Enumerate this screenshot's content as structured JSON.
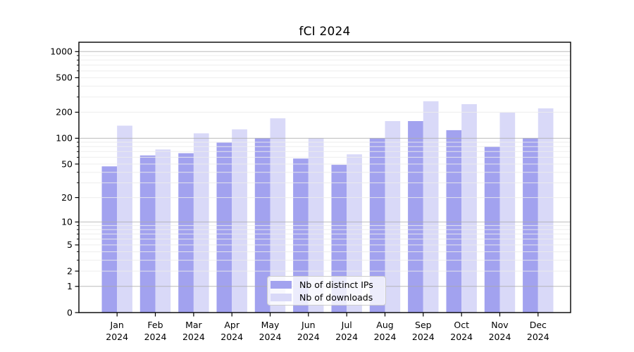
{
  "title": "fCI 2024",
  "chart_data": {
    "type": "bar",
    "title": "fCI 2024",
    "categories": [
      "Jan 2024",
      "Feb 2024",
      "Mar 2024",
      "Apr 2024",
      "May 2024",
      "Jun 2024",
      "Jul 2024",
      "Aug 2024",
      "Sep 2024",
      "Oct 2024",
      "Nov 2024",
      "Dec 2024"
    ],
    "series": [
      {
        "name": "Nb of distinct IPs",
        "color": "#a2a2ef",
        "values": [
          47,
          63,
          67,
          89,
          100,
          58,
          49,
          100,
          158,
          124,
          80,
          100
        ]
      },
      {
        "name": "Nb of downloads",
        "color": "#d9d9f8",
        "values": [
          140,
          74,
          114,
          127,
          170,
          100,
          65,
          158,
          268,
          248,
          198,
          222
        ]
      }
    ],
    "yscale": "log1p",
    "ylim": [
      0,
      1280
    ],
    "yticks": [
      0,
      1,
      2,
      5,
      10,
      20,
      50,
      100,
      200,
      500,
      1000
    ],
    "ytick_labels": [
      "0",
      "1",
      "2",
      "5",
      "10",
      "20",
      "50",
      "100",
      "200",
      "500",
      "1000"
    ],
    "grid": true,
    "legend_position": "lower center"
  },
  "colors": {
    "background": "#ffffff",
    "bar_distinct_ips": "#a2a2ef",
    "bar_downloads": "#d9d9f8",
    "grid_major": "#aaaaaa",
    "grid_minor": "#ebebeb",
    "axis": "#000000",
    "text": "#000000"
  }
}
